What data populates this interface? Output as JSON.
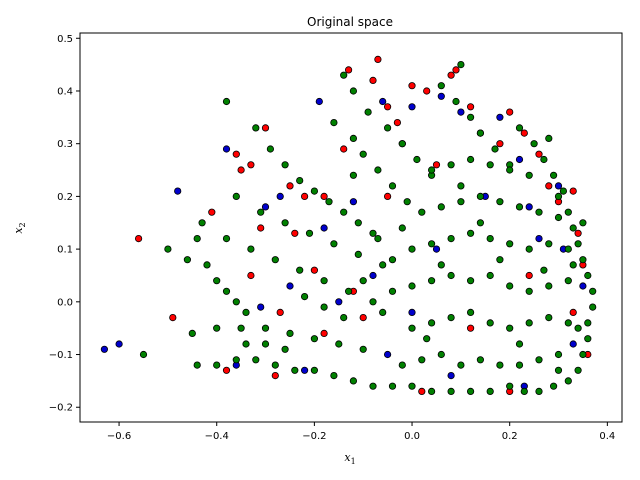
{
  "chart_data": {
    "type": "scatter",
    "title": "Original space",
    "xlabel": "x",
    "xlabel_sub": "1",
    "ylabel": "x",
    "ylabel_sub": "2",
    "xlim": [
      -0.68,
      0.43
    ],
    "ylim": [
      -0.228,
      0.51
    ],
    "xticks": [
      -0.6,
      -0.4,
      -0.2,
      0.0,
      0.2,
      0.4
    ],
    "xtick_labels": [
      "−0.6",
      "−0.4",
      "−0.2",
      "0.0",
      "0.2",
      "0.4"
    ],
    "yticks": [
      -0.2,
      -0.1,
      0.0,
      0.1,
      0.2,
      0.3,
      0.4,
      0.5
    ],
    "ytick_labels": [
      "−0.2",
      "−0.1",
      "0.0",
      "0.1",
      "0.2",
      "0.3",
      "0.4",
      "0.5"
    ],
    "grid": false,
    "legend": "none",
    "marker_edge_color": "#000000",
    "series": [
      {
        "color": "#ff0000",
        "points": [
          [
            -0.56,
            0.12
          ],
          [
            -0.49,
            -0.03
          ],
          [
            -0.41,
            0.17
          ],
          [
            -0.36,
            0.28
          ],
          [
            -0.35,
            0.25
          ],
          [
            -0.33,
            0.26
          ],
          [
            -0.3,
            0.33
          ],
          [
            -0.31,
            0.14
          ],
          [
            -0.33,
            0.05
          ],
          [
            -0.25,
            0.22
          ],
          [
            -0.22,
            0.2
          ],
          [
            -0.27,
            -0.02
          ],
          [
            -0.18,
            0.2
          ],
          [
            -0.14,
            0.29
          ],
          [
            -0.13,
            0.44
          ],
          [
            -0.08,
            0.42
          ],
          [
            -0.07,
            0.46
          ],
          [
            -0.05,
            0.37
          ],
          [
            -0.03,
            0.34
          ],
          [
            0.0,
            0.41
          ],
          [
            0.03,
            0.4
          ],
          [
            0.08,
            0.43
          ],
          [
            0.09,
            0.44
          ],
          [
            0.12,
            0.37
          ],
          [
            0.2,
            0.36
          ],
          [
            0.23,
            0.32
          ],
          [
            0.26,
            0.28
          ],
          [
            0.3,
            0.19
          ],
          [
            0.33,
            0.21
          ],
          [
            0.34,
            0.13
          ],
          [
            0.35,
            0.07
          ],
          [
            0.33,
            -0.02
          ],
          [
            0.36,
            -0.1
          ],
          [
            0.2,
            -0.17
          ],
          [
            0.02,
            -0.17
          ],
          [
            -0.18,
            -0.06
          ],
          [
            -0.1,
            -0.03
          ],
          [
            -0.28,
            -0.14
          ],
          [
            -0.38,
            -0.13
          ],
          [
            -0.2,
            0.06
          ],
          [
            -0.12,
            0.02
          ],
          [
            0.05,
            0.26
          ],
          [
            0.18,
            0.3
          ],
          [
            0.28,
            0.22
          ],
          [
            -0.05,
            0.2
          ],
          [
            -0.24,
            0.13
          ],
          [
            0.12,
            -0.05
          ],
          [
            0.24,
            0.05
          ]
        ]
      },
      {
        "color": "#0000cc",
        "points": [
          [
            -0.63,
            -0.09
          ],
          [
            -0.6,
            -0.08
          ],
          [
            -0.48,
            0.21
          ],
          [
            -0.38,
            0.29
          ],
          [
            -0.3,
            0.18
          ],
          [
            -0.31,
            -0.01
          ],
          [
            -0.27,
            0.2
          ],
          [
            -0.19,
            0.38
          ],
          [
            -0.18,
            0.14
          ],
          [
            -0.12,
            0.19
          ],
          [
            -0.06,
            0.38
          ],
          [
            -0.02,
            0.3
          ],
          [
            0.0,
            0.37
          ],
          [
            0.06,
            0.39
          ],
          [
            0.1,
            0.36
          ],
          [
            0.14,
            0.32
          ],
          [
            0.18,
            0.35
          ],
          [
            0.22,
            0.27
          ],
          [
            0.24,
            0.18
          ],
          [
            0.3,
            0.22
          ],
          [
            0.31,
            0.1
          ],
          [
            0.35,
            0.03
          ],
          [
            0.33,
            -0.08
          ],
          [
            0.23,
            -0.16
          ],
          [
            0.08,
            -0.14
          ],
          [
            -0.05,
            -0.1
          ],
          [
            -0.15,
            0.0
          ],
          [
            -0.22,
            -0.13
          ],
          [
            -0.36,
            -0.12
          ],
          [
            -0.08,
            0.05
          ],
          [
            0.05,
            0.1
          ],
          [
            0.15,
            0.2
          ],
          [
            0.26,
            0.12
          ],
          [
            0.0,
            -0.02
          ],
          [
            -0.25,
            0.03
          ]
        ]
      },
      {
        "color": "#008000",
        "points": [
          [
            -0.55,
            -0.1
          ],
          [
            -0.5,
            0.1
          ],
          [
            -0.46,
            0.08
          ],
          [
            -0.44,
            0.12
          ],
          [
            -0.42,
            0.07
          ],
          [
            -0.4,
            0.04
          ],
          [
            -0.38,
            0.02
          ],
          [
            -0.36,
            0.0
          ],
          [
            -0.34,
            -0.02
          ],
          [
            -0.44,
            -0.12
          ],
          [
            -0.4,
            -0.12
          ],
          [
            -0.36,
            -0.11
          ],
          [
            -0.32,
            -0.11
          ],
          [
            -0.28,
            -0.12
          ],
          [
            -0.24,
            -0.13
          ],
          [
            -0.2,
            -0.13
          ],
          [
            -0.16,
            -0.14
          ],
          [
            -0.12,
            -0.15
          ],
          [
            -0.08,
            -0.16
          ],
          [
            -0.45,
            -0.06
          ],
          [
            -0.4,
            -0.05
          ],
          [
            -0.35,
            -0.05
          ],
          [
            -0.3,
            -0.05
          ],
          [
            -0.25,
            -0.06
          ],
          [
            -0.2,
            -0.07
          ],
          [
            -0.15,
            -0.08
          ],
          [
            -0.1,
            -0.09
          ],
          [
            -0.43,
            0.15
          ],
          [
            -0.38,
            0.12
          ],
          [
            -0.33,
            0.1
          ],
          [
            -0.28,
            0.08
          ],
          [
            -0.23,
            0.06
          ],
          [
            -0.18,
            0.04
          ],
          [
            -0.13,
            0.02
          ],
          [
            -0.08,
            0.0
          ],
          [
            -0.36,
            0.2
          ],
          [
            -0.31,
            0.17
          ],
          [
            -0.26,
            0.15
          ],
          [
            -0.21,
            0.13
          ],
          [
            -0.16,
            0.11
          ],
          [
            -0.11,
            0.09
          ],
          [
            -0.06,
            0.07
          ],
          [
            -0.32,
            0.33
          ],
          [
            -0.29,
            0.29
          ],
          [
            -0.26,
            0.26
          ],
          [
            -0.23,
            0.23
          ],
          [
            -0.2,
            0.21
          ],
          [
            -0.17,
            0.19
          ],
          [
            -0.14,
            0.17
          ],
          [
            -0.11,
            0.15
          ],
          [
            -0.08,
            0.13
          ],
          [
            -0.38,
            0.38
          ],
          [
            -0.16,
            0.34
          ],
          [
            -0.12,
            0.31
          ],
          [
            -0.1,
            0.28
          ],
          [
            -0.07,
            0.25
          ],
          [
            -0.04,
            0.22
          ],
          [
            -0.01,
            0.19
          ],
          [
            -0.14,
            0.43
          ],
          [
            -0.12,
            0.4
          ],
          [
            -0.09,
            0.36
          ],
          [
            -0.05,
            0.33
          ],
          [
            -0.02,
            0.3
          ],
          [
            0.01,
            0.27
          ],
          [
            0.04,
            0.24
          ],
          [
            0.06,
            0.41
          ],
          [
            0.1,
            0.45
          ],
          [
            0.09,
            0.38
          ],
          [
            0.12,
            0.35
          ],
          [
            0.14,
            0.32
          ],
          [
            0.17,
            0.29
          ],
          [
            0.2,
            0.26
          ],
          [
            0.22,
            0.33
          ],
          [
            0.25,
            0.3
          ],
          [
            0.27,
            0.27
          ],
          [
            0.29,
            0.24
          ],
          [
            0.31,
            0.21
          ],
          [
            0.28,
            0.31
          ],
          [
            0.3,
            0.2
          ],
          [
            0.32,
            0.17
          ],
          [
            0.33,
            0.14
          ],
          [
            0.34,
            0.11
          ],
          [
            0.35,
            0.08
          ],
          [
            0.36,
            0.05
          ],
          [
            0.37,
            0.02
          ],
          [
            0.37,
            -0.01
          ],
          [
            0.36,
            -0.04
          ],
          [
            0.36,
            -0.07
          ],
          [
            0.35,
            -0.1
          ],
          [
            0.34,
            -0.13
          ],
          [
            0.32,
            -0.15
          ],
          [
            0.29,
            -0.16
          ],
          [
            0.26,
            -0.17
          ],
          [
            0.23,
            -0.17
          ],
          [
            0.2,
            -0.16
          ],
          [
            0.16,
            -0.17
          ],
          [
            0.12,
            -0.17
          ],
          [
            0.08,
            -0.17
          ],
          [
            0.04,
            -0.17
          ],
          [
            0.0,
            -0.16
          ],
          [
            -0.04,
            -0.16
          ],
          [
            0.02,
            -0.11
          ],
          [
            0.06,
            -0.1
          ],
          [
            0.1,
            -0.12
          ],
          [
            0.14,
            -0.11
          ],
          [
            0.18,
            -0.12
          ],
          [
            0.22,
            -0.12
          ],
          [
            0.26,
            -0.11
          ],
          [
            0.3,
            -0.1
          ],
          [
            0.0,
            -0.05
          ],
          [
            0.04,
            -0.04
          ],
          [
            0.08,
            -0.03
          ],
          [
            0.12,
            -0.02
          ],
          [
            0.16,
            -0.04
          ],
          [
            0.2,
            -0.05
          ],
          [
            0.24,
            -0.04
          ],
          [
            0.28,
            -0.03
          ],
          [
            0.32,
            -0.04
          ],
          [
            -0.04,
            0.02
          ],
          [
            0.0,
            0.03
          ],
          [
            0.04,
            0.04
          ],
          [
            0.08,
            0.05
          ],
          [
            0.12,
            0.04
          ],
          [
            0.16,
            0.05
          ],
          [
            0.2,
            0.03
          ],
          [
            0.24,
            0.02
          ],
          [
            0.28,
            0.03
          ],
          [
            0.32,
            0.04
          ],
          [
            0.0,
            0.1
          ],
          [
            0.04,
            0.11
          ],
          [
            0.08,
            0.12
          ],
          [
            0.12,
            0.13
          ],
          [
            0.16,
            0.12
          ],
          [
            0.2,
            0.11
          ],
          [
            0.24,
            0.1
          ],
          [
            0.28,
            0.11
          ],
          [
            0.32,
            0.1
          ],
          [
            0.02,
            0.17
          ],
          [
            0.06,
            0.18
          ],
          [
            0.1,
            0.19
          ],
          [
            0.14,
            0.2
          ],
          [
            0.18,
            0.19
          ],
          [
            0.22,
            0.18
          ],
          [
            0.26,
            0.17
          ],
          [
            0.3,
            0.16
          ],
          [
            0.04,
            0.25
          ],
          [
            0.08,
            0.26
          ],
          [
            0.12,
            0.27
          ],
          [
            0.16,
            0.26
          ],
          [
            0.2,
            0.25
          ],
          [
            0.24,
            0.24
          ],
          [
            -0.02,
            0.14
          ],
          [
            -0.04,
            0.08
          ],
          [
            -0.06,
            -0.02
          ],
          [
            -0.1,
            0.04
          ],
          [
            -0.14,
            -0.03
          ],
          [
            -0.18,
            -0.01
          ],
          [
            -0.22,
            0.01
          ],
          [
            -0.26,
            -0.09
          ],
          [
            -0.3,
            -0.08
          ],
          [
            -0.34,
            -0.08
          ],
          [
            -0.02,
            -0.12
          ],
          [
            0.35,
            0.15
          ],
          [
            0.33,
            0.07
          ],
          [
            0.34,
            -0.05
          ],
          [
            0.3,
            -0.13
          ],
          [
            0.27,
            0.06
          ],
          [
            0.22,
            -0.08
          ],
          [
            0.18,
            0.08
          ],
          [
            0.14,
            0.15
          ],
          [
            0.1,
            0.22
          ],
          [
            0.06,
            0.07
          ],
          [
            0.03,
            -0.07
          ],
          [
            -0.07,
            0.12
          ],
          [
            -0.12,
            0.24
          ]
        ]
      }
    ]
  }
}
